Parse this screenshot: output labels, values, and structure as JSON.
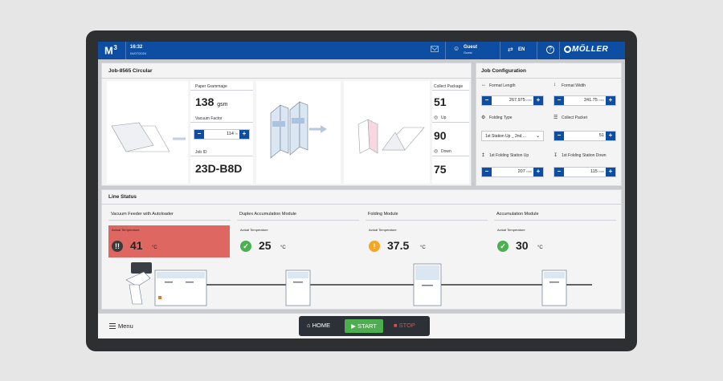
{
  "header": {
    "logo": "M³",
    "time": "16:32",
    "date": "04/07/2024",
    "user_name": "Guest",
    "user_role": "Guest",
    "language": "EN",
    "brand": "MÖLLER"
  },
  "job": {
    "title": "Job-8565 Circular",
    "paper_grammage_label": "Paper Grammage",
    "paper_grammage_value": "138",
    "paper_grammage_unit": "gsm",
    "vacuum_factor_label": "Vacuum Factor",
    "vacuum_factor_value": "114",
    "vacuum_factor_unit": "%",
    "job_id_label": "Job ID",
    "job_id_value": "23D-B8D",
    "collect_package_label": "Collect Package",
    "collect_package_value": "51",
    "up_label": "Up",
    "up_value": "90",
    "down_label": "Down",
    "down_value": "75"
  },
  "config": {
    "title": "Job Configuration",
    "format_length_label": "Format Length",
    "format_length_value": "267.975",
    "format_length_unit": "mm",
    "format_width_label": "Format Width",
    "format_width_value": "241.75",
    "format_width_unit": "mm",
    "folding_type_label": "Folding Type",
    "folding_type_value": "1st Station Up _ 2nd ...",
    "collect_packet_label": "Collect Packet",
    "collect_packet_value": "51",
    "fs_up_label": "1st Folding Station Up",
    "fs_up_value": "207",
    "fs_up_unit": "mm",
    "fs_down_label": "1st Folding Station Down",
    "fs_down_value": "115",
    "fs_down_unit": "mm"
  },
  "line_status": {
    "title": "Line Status",
    "temp_label": "Actual Temperature",
    "temp_unit": "°C",
    "modules": [
      {
        "name": "Vacuum Feeder with Autoloader",
        "temp": "41",
        "status": "alarm"
      },
      {
        "name": "Duplex Accumulation Module",
        "temp": "25",
        "status": "ok"
      },
      {
        "name": "Folding Module",
        "temp": "37.5",
        "status": "warning"
      },
      {
        "name": "Accumulation Module",
        "temp": "30",
        "status": "ok"
      }
    ]
  },
  "bottom": {
    "menu_label": "Menu",
    "home_label": "HOME",
    "start_label": "START",
    "stop_label": "STOP"
  },
  "colors": {
    "primary": "#0d4ea3",
    "alarm": "#df6762",
    "ok": "#4caf50",
    "warning": "#f5a623",
    "start": "#4cae4f",
    "stop": "#e24e43"
  }
}
